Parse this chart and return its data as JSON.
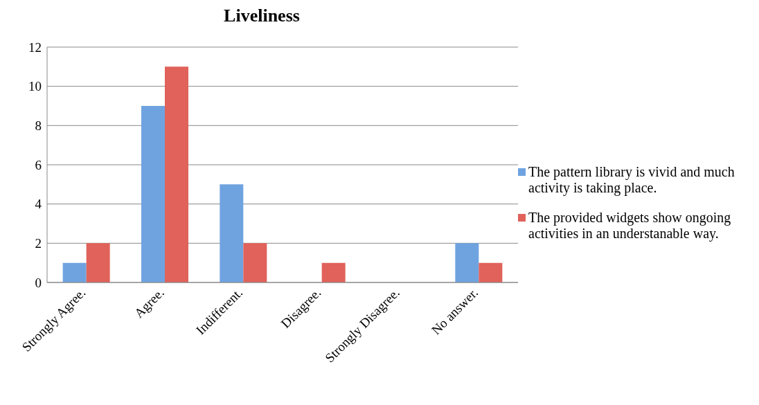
{
  "chart_data": {
    "type": "bar",
    "title": "Liveliness",
    "categories": [
      "Strongly Agree.",
      "Agree.",
      "Indifferent.",
      "Disagree.",
      "Strongly Disagree.",
      "No answer."
    ],
    "series": [
      {
        "name": "The pattern library is vivid and much activity is taking place.",
        "color": "#6fa3e0",
        "values": [
          1,
          9,
          5,
          0,
          0,
          2
        ]
      },
      {
        "name": "The provided widgets show ongoing activities in an understanable way.",
        "color": "#e0625a",
        "values": [
          2,
          11,
          2,
          1,
          0,
          1
        ]
      }
    ],
    "ylim": [
      0,
      12
    ],
    "yticks": [
      0,
      2,
      4,
      6,
      8,
      10,
      12
    ],
    "grid": "y",
    "legend": "right"
  }
}
